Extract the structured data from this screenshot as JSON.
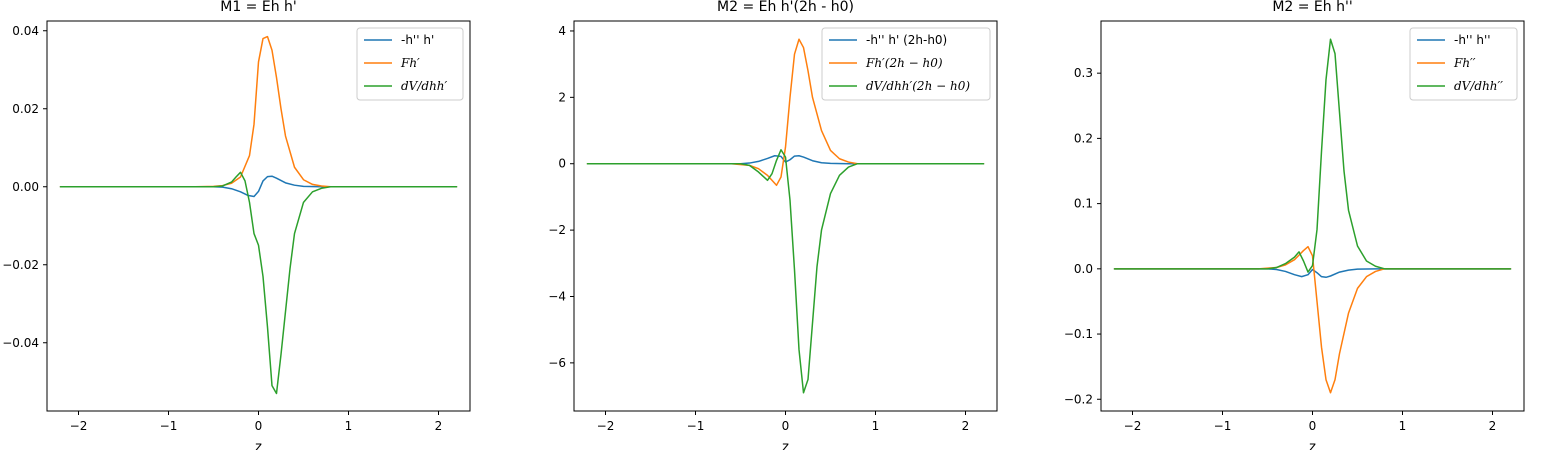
{
  "chart_data": [
    {
      "type": "line",
      "title": "M1 = Eh h'",
      "xlabel": "z",
      "ylabel": "",
      "xlim": [
        -2.35,
        2.35
      ],
      "ylim": [
        -0.0575,
        0.0425
      ],
      "xticks": [
        -2,
        -1,
        0,
        1,
        2
      ],
      "xtick_labels": [
        "−2",
        "−1",
        "0",
        "1",
        "2"
      ],
      "yticks": [
        -0.04,
        -0.02,
        0.0,
        0.02,
        0.04
      ],
      "ytick_labels": [
        "−0.04",
        "−0.02",
        "0.00",
        "0.02",
        "0.04"
      ],
      "legend_position": "top-right",
      "series": [
        {
          "name": "-h'' h'",
          "color": "#1f77b4",
          "x": [
            -2.2,
            -0.5,
            -0.4,
            -0.3,
            -0.2,
            -0.12,
            -0.05,
            0.0,
            0.05,
            0.1,
            0.15,
            0.2,
            0.3,
            0.4,
            0.5,
            0.7,
            2.2
          ],
          "y": [
            0,
            0,
            -0.0001,
            -0.0005,
            -0.0013,
            -0.0022,
            -0.0025,
            -0.0012,
            0.0015,
            0.0026,
            0.0027,
            0.0022,
            0.001,
            0.0004,
            0.0001,
            0,
            0
          ]
        },
        {
          "name": "Fh′",
          "color": "#ff7f0e",
          "x": [
            -2.2,
            -0.7,
            -0.5,
            -0.4,
            -0.3,
            -0.2,
            -0.1,
            -0.05,
            0.0,
            0.05,
            0.1,
            0.15,
            0.2,
            0.25,
            0.3,
            0.4,
            0.5,
            0.6,
            0.7,
            0.8,
            2.2
          ],
          "y": [
            0,
            0,
            0.0001,
            0.0003,
            0.0009,
            0.0025,
            0.008,
            0.016,
            0.032,
            0.038,
            0.0385,
            0.035,
            0.028,
            0.02,
            0.013,
            0.005,
            0.0018,
            0.0006,
            0.0002,
            0,
            0
          ]
        },
        {
          "name": "dV/dhh′",
          "color": "#2ca02c",
          "x": [
            -2.2,
            -0.5,
            -0.4,
            -0.3,
            -0.25,
            -0.2,
            -0.15,
            -0.1,
            -0.05,
            0.0,
            0.05,
            0.1,
            0.15,
            0.2,
            0.25,
            0.3,
            0.35,
            0.4,
            0.5,
            0.6,
            0.7,
            0.8,
            2.2
          ],
          "y": [
            0,
            0,
            0.0002,
            0.0012,
            0.0025,
            0.0037,
            0.0015,
            -0.004,
            -0.012,
            -0.015,
            -0.023,
            -0.036,
            -0.051,
            -0.053,
            -0.043,
            -0.032,
            -0.021,
            -0.012,
            -0.004,
            -0.0013,
            -0.0004,
            0,
            0
          ]
        }
      ]
    },
    {
      "type": "line",
      "title": "M2 = Eh h'(2h - h0)",
      "xlabel": "z",
      "ylabel": "",
      "xlim": [
        -2.35,
        2.35
      ],
      "ylim": [
        -7.45,
        4.3
      ],
      "xticks": [
        -2,
        -1,
        0,
        1,
        2
      ],
      "xtick_labels": [
        "−2",
        "−1",
        "0",
        "1",
        "2"
      ],
      "yticks": [
        -6,
        -4,
        -2,
        0,
        2,
        4
      ],
      "ytick_labels": [
        "−6",
        "−4",
        "−2",
        "0",
        "2",
        "4"
      ],
      "legend_position": "top-right",
      "series": [
        {
          "name": "-h'' h' (2h-h0)",
          "color": "#1f77b4",
          "x": [
            -2.2,
            -0.5,
            -0.4,
            -0.3,
            -0.2,
            -0.12,
            -0.05,
            0.0,
            0.05,
            0.1,
            0.15,
            0.2,
            0.3,
            0.4,
            0.5,
            0.7,
            2.2
          ],
          "y": [
            0,
            0,
            0.02,
            0.07,
            0.16,
            0.24,
            0.22,
            0.05,
            0.12,
            0.23,
            0.24,
            0.2,
            0.09,
            0.03,
            0.01,
            0,
            0
          ]
        },
        {
          "name": "Fh′(2h − h0)",
          "color": "#ff7f0e",
          "x": [
            -2.2,
            -0.6,
            -0.4,
            -0.3,
            -0.2,
            -0.1,
            -0.05,
            0.0,
            0.05,
            0.1,
            0.15,
            0.2,
            0.25,
            0.3,
            0.4,
            0.5,
            0.6,
            0.7,
            0.8,
            2.2
          ],
          "y": [
            0,
            0,
            -0.05,
            -0.15,
            -0.35,
            -0.65,
            -0.4,
            0.5,
            2.0,
            3.3,
            3.75,
            3.5,
            2.8,
            2.0,
            1.0,
            0.4,
            0.15,
            0.05,
            0,
            0
          ]
        },
        {
          "name": "dV/dhh′(2h − h0)",
          "color": "#2ca02c",
          "x": [
            -2.2,
            -0.5,
            -0.4,
            -0.3,
            -0.2,
            -0.15,
            -0.1,
            -0.05,
            0.0,
            0.05,
            0.1,
            0.15,
            0.2,
            0.25,
            0.3,
            0.35,
            0.4,
            0.5,
            0.6,
            0.7,
            0.8,
            2.2
          ],
          "y": [
            0,
            0,
            -0.05,
            -0.25,
            -0.5,
            -0.3,
            0.1,
            0.42,
            0.2,
            -1.1,
            -3.2,
            -5.6,
            -6.9,
            -6.5,
            -4.8,
            -3.1,
            -2.0,
            -0.9,
            -0.35,
            -0.1,
            0,
            0
          ]
        }
      ]
    },
    {
      "type": "line",
      "title": "M2 = Eh h''",
      "xlabel": "z",
      "ylabel": "",
      "xlim": [
        -2.35,
        2.35
      ],
      "ylim": [
        -0.218,
        0.38
      ],
      "xticks": [
        -2,
        -1,
        0,
        1,
        2
      ],
      "xtick_labels": [
        "−2",
        "−1",
        "0",
        "1",
        "2"
      ],
      "yticks": [
        -0.2,
        -0.1,
        0.0,
        0.1,
        0.2,
        0.3
      ],
      "ytick_labels": [
        "−0.2",
        "−0.1",
        "0.0",
        "0.1",
        "0.2",
        "0.3"
      ],
      "legend_position": "top-right",
      "series": [
        {
          "name": "-h'' h''",
          "color": "#1f77b4",
          "x": [
            -2.2,
            -0.5,
            -0.4,
            -0.3,
            -0.2,
            -0.12,
            -0.05,
            0.0,
            0.05,
            0.1,
            0.15,
            0.2,
            0.3,
            0.4,
            0.5,
            0.7,
            2.2
          ],
          "y": [
            0,
            0,
            -0.001,
            -0.004,
            -0.009,
            -0.012,
            -0.009,
            -0.001,
            -0.006,
            -0.012,
            -0.013,
            -0.011,
            -0.005,
            -0.002,
            -0.0005,
            0,
            0
          ]
        },
        {
          "name": "Fh′′",
          "color": "#ff7f0e",
          "x": [
            -2.2,
            -0.6,
            -0.4,
            -0.3,
            -0.2,
            -0.1,
            -0.05,
            0.0,
            0.05,
            0.1,
            0.15,
            0.2,
            0.25,
            0.3,
            0.4,
            0.5,
            0.6,
            0.7,
            0.8,
            2.2
          ],
          "y": [
            0,
            0,
            0.002,
            0.006,
            0.014,
            0.028,
            0.034,
            0.02,
            -0.05,
            -0.12,
            -0.17,
            -0.19,
            -0.17,
            -0.13,
            -0.068,
            -0.03,
            -0.012,
            -0.004,
            0,
            0
          ]
        },
        {
          "name": "dV/dhh′′",
          "color": "#2ca02c",
          "x": [
            -2.2,
            -0.5,
            -0.4,
            -0.3,
            -0.2,
            -0.15,
            -0.1,
            -0.05,
            0.0,
            0.05,
            0.1,
            0.15,
            0.2,
            0.25,
            0.3,
            0.35,
            0.4,
            0.5,
            0.6,
            0.7,
            0.8,
            2.2
          ],
          "y": [
            0,
            0,
            0.002,
            0.008,
            0.018,
            0.026,
            0.012,
            -0.005,
            0.005,
            0.06,
            0.18,
            0.29,
            0.352,
            0.33,
            0.24,
            0.15,
            0.09,
            0.035,
            0.012,
            0.004,
            0,
            0
          ]
        }
      ]
    }
  ]
}
